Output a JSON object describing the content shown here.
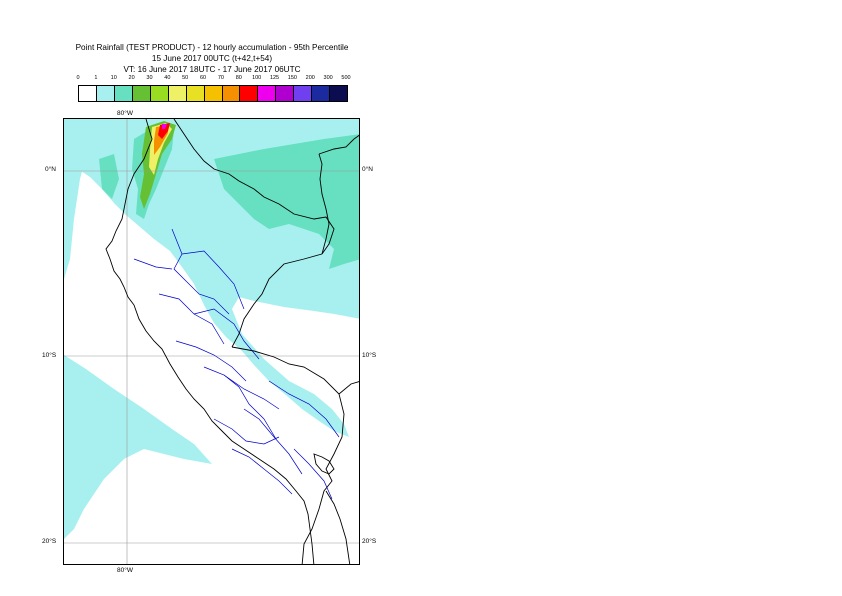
{
  "header": {
    "title": "Point Rainfall (TEST PRODUCT) - 12 hourly accumulation - 95th Percentile",
    "run": "15 June 2017 00UTC (t+42,t+54)",
    "valid": "VT: 16 June 2017 18UTC - 17 June 2017 06UTC"
  },
  "legend": {
    "labels": [
      "0",
      "1",
      "10",
      "20",
      "30",
      "40",
      "50",
      "60",
      "70",
      "80",
      "100",
      "125",
      "150",
      "200",
      "300",
      "500"
    ],
    "colors": [
      "#ffffff",
      "#a8f0f0",
      "#66e0c0",
      "#66c033",
      "#99dd22",
      "#eef066",
      "#e8e022",
      "#f5c000",
      "#f59000",
      "#ff0000",
      "#ee00ee",
      "#b000d0",
      "#7040f0",
      "#1c2aa0",
      "#0c0c50"
    ]
  },
  "map": {
    "labels": {
      "lon_top": "80°W",
      "lon_bottom": "80°W",
      "lat_0_left": "0°N",
      "lat_0_right": "0°N",
      "lat_10_left": "10°S",
      "lat_10_right": "10°S",
      "lat_20_left": "20°S",
      "lat_20_right": "20°S"
    },
    "colors": {
      "light_rain": "#a8f0f0",
      "moderate_rain": "#66e0c0",
      "country_border": "#000000",
      "region_border": "#0000cc",
      "graticule": "#999999"
    }
  }
}
